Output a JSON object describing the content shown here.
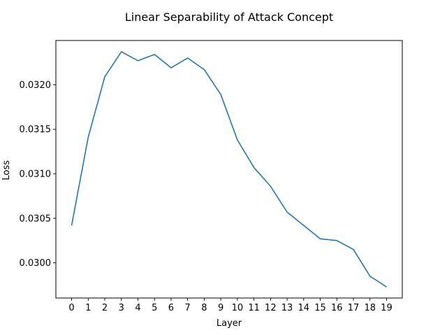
{
  "chart_data": {
    "type": "line",
    "title": "Linear Separability of Attack Concept",
    "xlabel": "Layer",
    "ylabel": "Loss",
    "x": [
      0,
      1,
      2,
      3,
      4,
      5,
      6,
      7,
      8,
      9,
      10,
      11,
      12,
      13,
      14,
      15,
      16,
      17,
      18,
      19
    ],
    "x_tick_labels": [
      "0",
      "1",
      "2",
      "3",
      "4",
      "5",
      "6",
      "7",
      "8",
      "9",
      "10",
      "11",
      "12",
      "13",
      "14",
      "15",
      "16",
      "17",
      "18",
      "19"
    ],
    "series": [
      {
        "values": [
          0.03042,
          0.03141,
          0.03209,
          0.03237,
          0.03227,
          0.03234,
          0.03219,
          0.0323,
          0.03217,
          0.03189,
          0.03138,
          0.03107,
          0.03086,
          0.03057,
          0.03042,
          0.03027,
          0.03025,
          0.03015,
          0.02985,
          0.02973
        ],
        "color": "#1f77b4"
      }
    ],
    "y_ticks": [
      0.03,
      0.0305,
      0.031,
      0.0315,
      0.032
    ],
    "y_tick_labels": [
      "0.0300",
      "0.0305",
      "0.0310",
      "0.0315",
      "0.0320"
    ],
    "xlim": [
      -0.95,
      19.95
    ],
    "ylim": [
      0.029605,
      0.034
    ],
    "ylim_visible_max": 0.032497,
    "grid": false,
    "legend": "none"
  }
}
